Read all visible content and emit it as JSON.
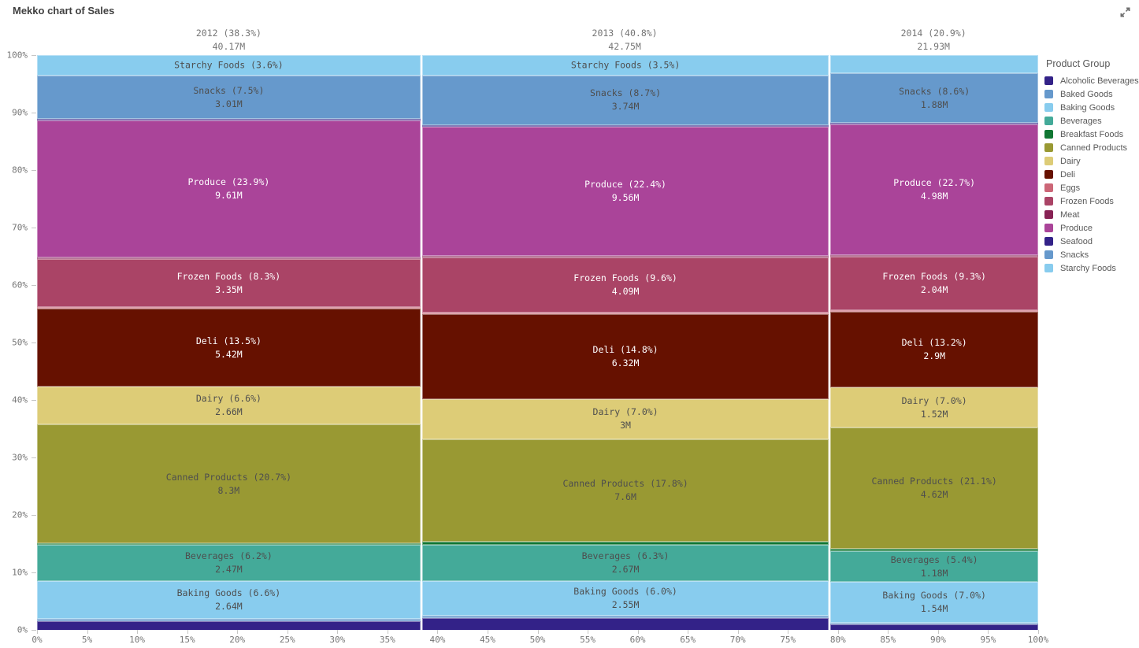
{
  "chart_data": {
    "type": "mekko",
    "title": "Mekko chart of Sales",
    "legend_title": "Product Group",
    "legend_position": "right",
    "grid": false,
    "y_axis": {
      "range": [
        0,
        100
      ],
      "ticks": [
        "100%",
        "90%",
        "80%",
        "70%",
        "60%",
        "50%",
        "40%",
        "30%",
        "20%",
        "10%",
        "0%"
      ]
    },
    "x_axis": {
      "range": [
        0,
        100
      ],
      "ticks": [
        "0%",
        "5%",
        "10%",
        "15%",
        "20%",
        "25%",
        "30%",
        "35%",
        "40%",
        "45%",
        "50%",
        "55%",
        "60%",
        "65%",
        "70%",
        "75%",
        "80%",
        "85%",
        "90%",
        "95%",
        "100%"
      ]
    },
    "product_groups": [
      {
        "name": "Alcoholic Beverages",
        "color": "#332288"
      },
      {
        "name": "Baked Goods",
        "color": "#6699CC"
      },
      {
        "name": "Baking Goods",
        "color": "#88CCEE"
      },
      {
        "name": "Beverages",
        "color": "#44AA99"
      },
      {
        "name": "Breakfast Foods",
        "color": "#117733"
      },
      {
        "name": "Canned Products",
        "color": "#999933"
      },
      {
        "name": "Dairy",
        "color": "#DDCC77"
      },
      {
        "name": "Deli",
        "color": "#661100"
      },
      {
        "name": "Eggs",
        "color": "#CC6677"
      },
      {
        "name": "Frozen Foods",
        "color": "#AA4466"
      },
      {
        "name": "Meat",
        "color": "#882255"
      },
      {
        "name": "Produce",
        "color": "#AA4499"
      },
      {
        "name": "Seafood",
        "color": "#332288"
      },
      {
        "name": "Snacks",
        "color": "#6699CC"
      },
      {
        "name": "Starchy Foods",
        "color": "#88CCEE"
      }
    ],
    "columns": [
      {
        "year": "2012",
        "header": "2012 (38.3%)",
        "total": "40.17M",
        "width_pct": 38.3,
        "segments": [
          {
            "group": "Starchy Foods",
            "pct": 3.6,
            "label": "Starchy Foods (3.6%)"
          },
          {
            "group": "Snacks",
            "pct": 7.5,
            "label": "Snacks (7.5%)",
            "value": "3.01M"
          },
          {
            "group": "Seafood",
            "pct": 0.2
          },
          {
            "group": "Produce",
            "pct": 23.9,
            "label": "Produce (23.9%)",
            "value": "9.61M"
          },
          {
            "group": "Meat",
            "pct": 0.2
          },
          {
            "group": "Frozen Foods",
            "pct": 8.3,
            "label": "Frozen Foods (8.3%)",
            "value": "3.35M"
          },
          {
            "group": "Eggs",
            "pct": 0.3
          },
          {
            "group": "Deli",
            "pct": 13.5,
            "label": "Deli (13.5%)",
            "value": "5.42M"
          },
          {
            "group": "Dairy",
            "pct": 6.6,
            "label": "Dairy (6.6%)",
            "value": "2.66M"
          },
          {
            "group": "Canned Products",
            "pct": 20.7,
            "label": "Canned Products (20.7%)",
            "value": "8.3M"
          },
          {
            "group": "Breakfast Foods",
            "pct": 0.3
          },
          {
            "group": "Beverages",
            "pct": 6.2,
            "label": "Beverages (6.2%)",
            "value": "2.47M"
          },
          {
            "group": "Baking Goods",
            "pct": 6.6,
            "label": "Baking Goods (6.6%)",
            "value": "2.64M"
          },
          {
            "group": "Baked Goods",
            "pct": 0.4
          },
          {
            "group": "Alcoholic Beverages",
            "pct": 1.7
          }
        ]
      },
      {
        "year": "2013",
        "header": "2013 (40.8%)",
        "total": "42.75M",
        "width_pct": 40.8,
        "segments": [
          {
            "group": "Starchy Foods",
            "pct": 3.5,
            "label": "Starchy Foods (3.5%)"
          },
          {
            "group": "Snacks",
            "pct": 8.7,
            "label": "Snacks (8.7%)",
            "value": "3.74M"
          },
          {
            "group": "Seafood",
            "pct": 0.2
          },
          {
            "group": "Produce",
            "pct": 22.4,
            "label": "Produce (22.4%)",
            "value": "9.56M"
          },
          {
            "group": "Meat",
            "pct": 0.2
          },
          {
            "group": "Frozen Foods",
            "pct": 9.6,
            "label": "Frozen Foods (9.6%)",
            "value": "4.09M"
          },
          {
            "group": "Eggs",
            "pct": 0.3
          },
          {
            "group": "Deli",
            "pct": 14.8,
            "label": "Deli (14.8%)",
            "value": "6.32M"
          },
          {
            "group": "Dairy",
            "pct": 7.0,
            "label": "Dairy (7.0%)",
            "value": "3M"
          },
          {
            "group": "Canned Products",
            "pct": 17.8,
            "label": "Canned Products (17.8%)",
            "value": "7.6M"
          },
          {
            "group": "Breakfast Foods",
            "pct": 0.6
          },
          {
            "group": "Beverages",
            "pct": 6.3,
            "label": "Beverages (6.3%)",
            "value": "2.67M"
          },
          {
            "group": "Baking Goods",
            "pct": 6.0,
            "label": "Baking Goods (6.0%)",
            "value": "2.55M"
          },
          {
            "group": "Baked Goods",
            "pct": 0.4
          },
          {
            "group": "Alcoholic Beverages",
            "pct": 2.2
          }
        ]
      },
      {
        "year": "2014",
        "header": "2014 (20.9%)",
        "total": "21.93M",
        "width_pct": 20.9,
        "segments": [
          {
            "group": "Starchy Foods",
            "pct": 3.2
          },
          {
            "group": "Snacks",
            "pct": 8.6,
            "label": "Snacks (8.6%)",
            "value": "1.88M"
          },
          {
            "group": "Seafood",
            "pct": 0.1
          },
          {
            "group": "Produce",
            "pct": 22.7,
            "label": "Produce (22.7%)",
            "value": "4.98M"
          },
          {
            "group": "Meat",
            "pct": 0.1
          },
          {
            "group": "Frozen Foods",
            "pct": 9.3,
            "label": "Frozen Foods (9.3%)",
            "value": "2.04M"
          },
          {
            "group": "Eggs",
            "pct": 0.2
          },
          {
            "group": "Deli",
            "pct": 13.2,
            "label": "Deli (13.2%)",
            "value": "2.9M"
          },
          {
            "group": "Dairy",
            "pct": 7.0,
            "label": "Dairy (7.0%)",
            "value": "1.52M"
          },
          {
            "group": "Canned Products",
            "pct": 21.1,
            "label": "Canned Products (21.1%)",
            "value": "4.62M"
          },
          {
            "group": "Breakfast Foods",
            "pct": 0.4
          },
          {
            "group": "Beverages",
            "pct": 5.4,
            "label": "Beverages (5.4%)",
            "value": "1.18M"
          },
          {
            "group": "Baking Goods",
            "pct": 7.0,
            "label": "Baking Goods (7.0%)",
            "value": "1.54M"
          },
          {
            "group": "Baked Goods",
            "pct": 0.4
          },
          {
            "group": "Alcoholic Beverages",
            "pct": 1.3
          }
        ]
      }
    ]
  }
}
